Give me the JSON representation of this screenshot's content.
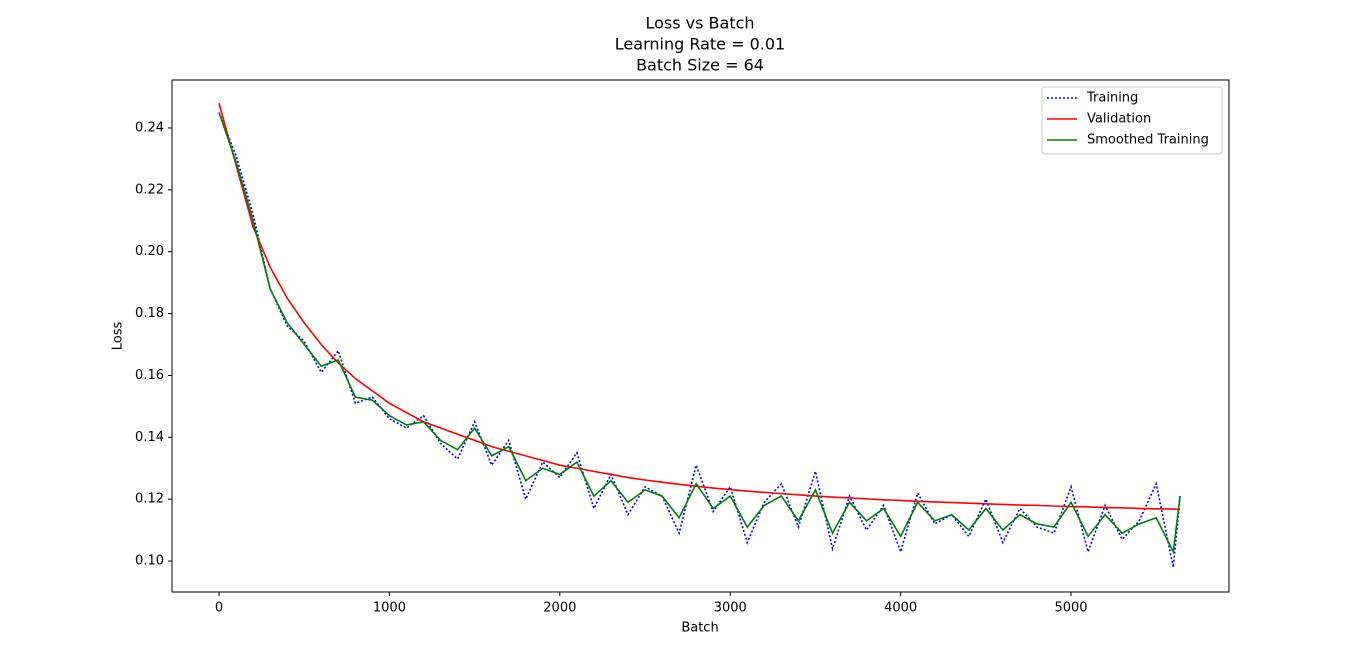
{
  "chart_data": {
    "type": "line",
    "title": "Loss vs Batch",
    "subtitle": [
      "Learning Rate = 0.01",
      "Batch Size = 64"
    ],
    "xlabel": "Batch",
    "ylabel": "Loss",
    "x": [
      0,
      100,
      200,
      300,
      400,
      500,
      600,
      700,
      800,
      900,
      1000,
      1100,
      1200,
      1300,
      1400,
      1500,
      1600,
      1700,
      1800,
      1900,
      2000,
      2100,
      2200,
      2300,
      2400,
      2500,
      2600,
      2700,
      2800,
      2900,
      3000,
      3100,
      3200,
      3300,
      3400,
      3500,
      3600,
      3700,
      3800,
      3900,
      4000,
      4100,
      4200,
      4300,
      4400,
      4500,
      4600,
      4700,
      4800,
      4900,
      5000,
      5100,
      5200,
      5300,
      5400,
      5500,
      5600,
      5640
    ],
    "series": [
      {
        "name": "Training",
        "color": "#0000ff",
        "dash": "dotted",
        "values": [
          0.245,
          0.231,
          0.212,
          0.188,
          0.176,
          0.171,
          0.161,
          0.168,
          0.151,
          0.153,
          0.146,
          0.143,
          0.147,
          0.138,
          0.133,
          0.145,
          0.131,
          0.139,
          0.12,
          0.132,
          0.127,
          0.135,
          0.117,
          0.128,
          0.115,
          0.124,
          0.121,
          0.109,
          0.131,
          0.116,
          0.124,
          0.106,
          0.119,
          0.125,
          0.111,
          0.129,
          0.104,
          0.121,
          0.11,
          0.118,
          0.103,
          0.122,
          0.112,
          0.115,
          0.108,
          0.12,
          0.106,
          0.117,
          0.111,
          0.109,
          0.124,
          0.103,
          0.118,
          0.107,
          0.113,
          0.125,
          0.098,
          0.121
        ]
      },
      {
        "name": "Validation",
        "color": "#ff0000",
        "dash": "solid",
        "values": [
          0.248,
          0.228,
          0.208,
          0.195,
          0.185,
          0.177,
          0.17,
          0.164,
          0.159,
          0.155,
          0.151,
          0.148,
          0.145,
          0.143,
          0.141,
          0.139,
          0.137,
          0.1355,
          0.134,
          0.1325,
          0.131,
          0.13,
          0.129,
          0.128,
          0.127,
          0.1262,
          0.1255,
          0.1248,
          0.1242,
          0.1236,
          0.1231,
          0.1226,
          0.1222,
          0.1218,
          0.1214,
          0.121,
          0.1207,
          0.1204,
          0.1201,
          0.1198,
          0.1196,
          0.1193,
          0.1191,
          0.1189,
          0.1187,
          0.1185,
          0.1183,
          0.1181,
          0.118,
          0.1178,
          0.1176,
          0.1175,
          0.1173,
          0.1172,
          0.117,
          0.1169,
          0.1168,
          0.1167
        ]
      },
      {
        "name": "Smoothed Training",
        "color": "#008000",
        "dash": "solid",
        "values": [
          0.245,
          0.229,
          0.21,
          0.188,
          0.177,
          0.17,
          0.163,
          0.165,
          0.153,
          0.152,
          0.147,
          0.144,
          0.145,
          0.139,
          0.136,
          0.143,
          0.134,
          0.137,
          0.126,
          0.13,
          0.128,
          0.132,
          0.121,
          0.126,
          0.119,
          0.123,
          0.121,
          0.114,
          0.125,
          0.117,
          0.121,
          0.111,
          0.118,
          0.121,
          0.113,
          0.123,
          0.109,
          0.119,
          0.113,
          0.117,
          0.108,
          0.119,
          0.113,
          0.115,
          0.11,
          0.117,
          0.11,
          0.115,
          0.112,
          0.111,
          0.119,
          0.108,
          0.115,
          0.109,
          0.112,
          0.114,
          0.103,
          0.121
        ]
      }
    ],
    "xlim": [
      -276,
      5927
    ],
    "ylim": [
      0.09,
      0.2555
    ],
    "xticks": [
      0,
      1000,
      2000,
      3000,
      4000,
      5000
    ],
    "yticks": [
      {
        "value": 0.1,
        "label": "0.10"
      },
      0.12,
      0.14,
      0.16,
      0.18,
      {
        "value": 0.2,
        "label": "0.20"
      },
      0.22,
      0.24
    ],
    "grid": false,
    "legend": "upper right"
  }
}
